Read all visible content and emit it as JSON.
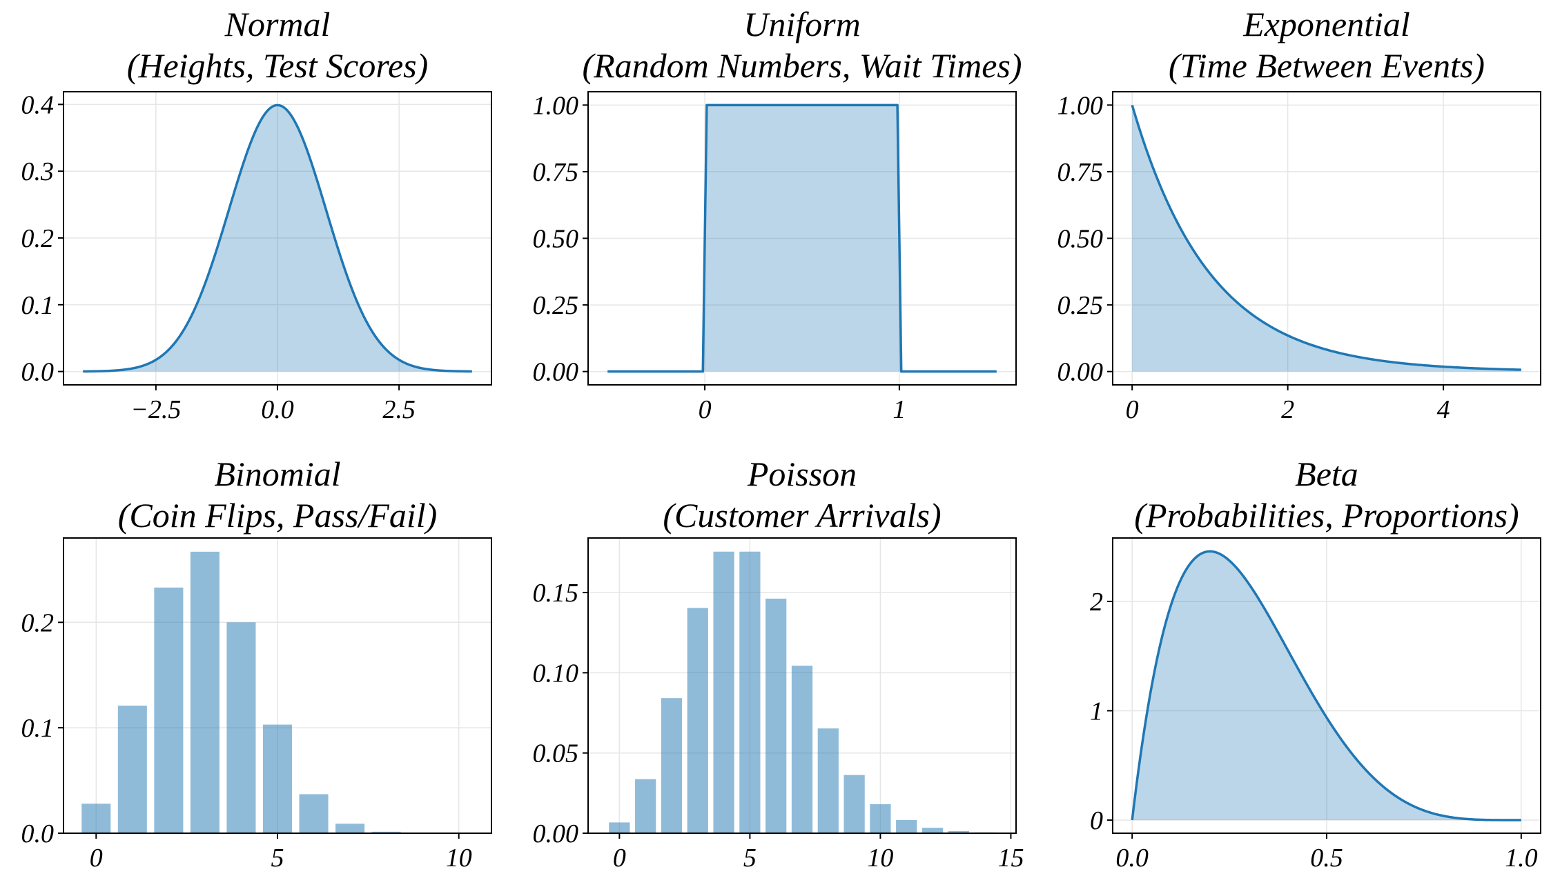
{
  "colors": {
    "line": "#1f77b4",
    "fill": "#1f77b4",
    "fill_opacity": 0.3,
    "bar_opacity": 0.5,
    "grid": "#e6e6e6"
  },
  "chart_data": [
    {
      "type": "area",
      "title": "Normal",
      "subtitle": "(Heights, Test Scores)",
      "dist": "normal",
      "x_range": [
        -4,
        4
      ],
      "y": "pdf of standard normal, peak 0.399 at x = 0",
      "xlim": [
        -4.4,
        4.4
      ],
      "ylim": [
        -0.02,
        0.419
      ],
      "xticks": [
        -2.5,
        0.0,
        2.5
      ],
      "xtick_labels": [
        "−2.5",
        "0.0",
        "2.5"
      ],
      "yticks": [
        0.0,
        0.1,
        0.2,
        0.3,
        0.4
      ],
      "ytick_labels": [
        "0.0",
        "0.1",
        "0.2",
        "0.3",
        "0.4"
      ],
      "grid": true
    },
    {
      "type": "area",
      "title": "Uniform",
      "subtitle": "(Random Numbers, Wait Times)",
      "dist": "uniform",
      "x": [
        -0.5,
        -0.01,
        0.01,
        0.99,
        1.01,
        1.5
      ],
      "y": [
        0,
        0,
        1,
        1,
        0,
        0
      ],
      "xlim": [
        -0.6,
        1.6
      ],
      "ylim": [
        -0.05,
        1.05
      ],
      "xticks": [
        0,
        1
      ],
      "xtick_labels": [
        "0",
        "1"
      ],
      "yticks": [
        0.0,
        0.25,
        0.5,
        0.75,
        1.0
      ],
      "ytick_labels": [
        "0.00",
        "0.25",
        "0.50",
        "0.75",
        "1.00"
      ],
      "grid": true
    },
    {
      "type": "area",
      "title": "Exponential",
      "subtitle": "(Time Between Events)",
      "dist": "exponential",
      "x_range": [
        0,
        5
      ],
      "rate": 1,
      "xlim": [
        -0.25,
        5.25
      ],
      "ylim": [
        -0.05,
        1.05
      ],
      "xticks": [
        0,
        2,
        4
      ],
      "xtick_labels": [
        "0",
        "2",
        "4"
      ],
      "yticks": [
        0.0,
        0.25,
        0.5,
        0.75,
        1.0
      ],
      "ytick_labels": [
        "0.00",
        "0.25",
        "0.50",
        "0.75",
        "1.00"
      ],
      "grid": true
    },
    {
      "type": "bar",
      "title": "Binomial",
      "subtitle": "(Coin Flips, Pass/Fail)",
      "dist": "binomial",
      "x": [
        0,
        1,
        2,
        3,
        4,
        5,
        6,
        7,
        8,
        9,
        10
      ],
      "values": [
        0.028,
        0.121,
        0.233,
        0.267,
        0.2,
        0.103,
        0.037,
        0.009,
        0.0014,
        0.0001,
        0.0
      ],
      "xlim": [
        -0.9,
        10.9
      ],
      "ylim": [
        0,
        0.28
      ],
      "xticks": [
        0,
        5,
        10
      ],
      "xtick_labels": [
        "0",
        "5",
        "10"
      ],
      "yticks": [
        0.0,
        0.1,
        0.2
      ],
      "ytick_labels": [
        "0.0",
        "0.1",
        "0.2"
      ],
      "grid": true
    },
    {
      "type": "bar",
      "title": "Poisson",
      "subtitle": "(Customer Arrivals)",
      "dist": "poisson",
      "x": [
        0,
        1,
        2,
        3,
        4,
        5,
        6,
        7,
        8,
        9,
        10,
        11,
        12,
        13,
        14
      ],
      "values": [
        0.0067,
        0.0337,
        0.0842,
        0.1404,
        0.1755,
        0.1755,
        0.1462,
        0.1044,
        0.0653,
        0.0363,
        0.0181,
        0.0082,
        0.0034,
        0.0013,
        0.0005
      ],
      "xlim": [
        -1.2,
        15.2
      ],
      "ylim": [
        0,
        0.184
      ],
      "xticks": [
        0,
        5,
        10,
        15
      ],
      "xtick_labels": [
        "0",
        "5",
        "10",
        "15"
      ],
      "yticks": [
        0.0,
        0.05,
        0.1,
        0.15
      ],
      "ytick_labels": [
        "0.00",
        "0.05",
        "0.10",
        "0.15"
      ],
      "grid": true
    },
    {
      "type": "area",
      "title": "Beta",
      "subtitle": "(Probabilities, Proportions)",
      "dist": "beta",
      "x_range": [
        0,
        1
      ],
      "alpha": 2,
      "beta": 5,
      "xlim": [
        -0.05,
        1.05
      ],
      "ylim": [
        -0.12,
        2.58
      ],
      "xticks": [
        0.0,
        0.5,
        1.0
      ],
      "xtick_labels": [
        "0.0",
        "0.5",
        "1.0"
      ],
      "yticks": [
        0,
        1,
        2
      ],
      "ytick_labels": [
        "0",
        "1",
        "2"
      ],
      "grid": true
    }
  ]
}
